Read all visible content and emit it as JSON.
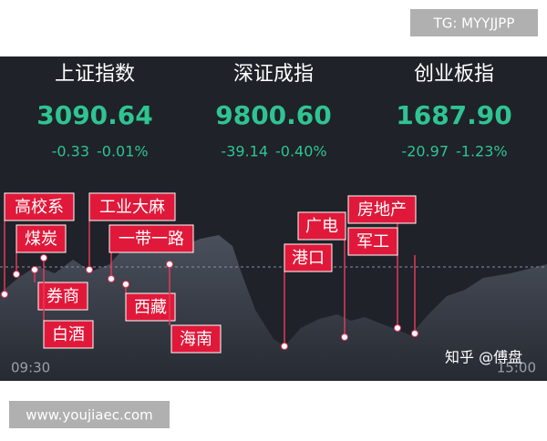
{
  "watermark_top": "TG: MYYJJPP",
  "indices": [
    {
      "name": "上证指数",
      "value": "3090.64",
      "change": "-0.33",
      "percent": "-0.01%"
    },
    {
      "name": "深证成指",
      "value": "9800.60",
      "change": "-39.14",
      "percent": "-0.40%"
    },
    {
      "name": "创业板指",
      "value": "1687.90",
      "change": "-20.97",
      "percent": "-1.23%"
    }
  ],
  "annotations": [
    "高校系",
    "煤炭",
    "券商",
    "白酒",
    "工业大麻",
    "一带一路",
    "西藏",
    "海南",
    "广电",
    "港口",
    "房地产",
    "军工"
  ],
  "time_start": "09:30",
  "time_end": "15:00",
  "credit": "知乎 @傅盘",
  "watermark_bottom": "www.youjiaec.com"
}
